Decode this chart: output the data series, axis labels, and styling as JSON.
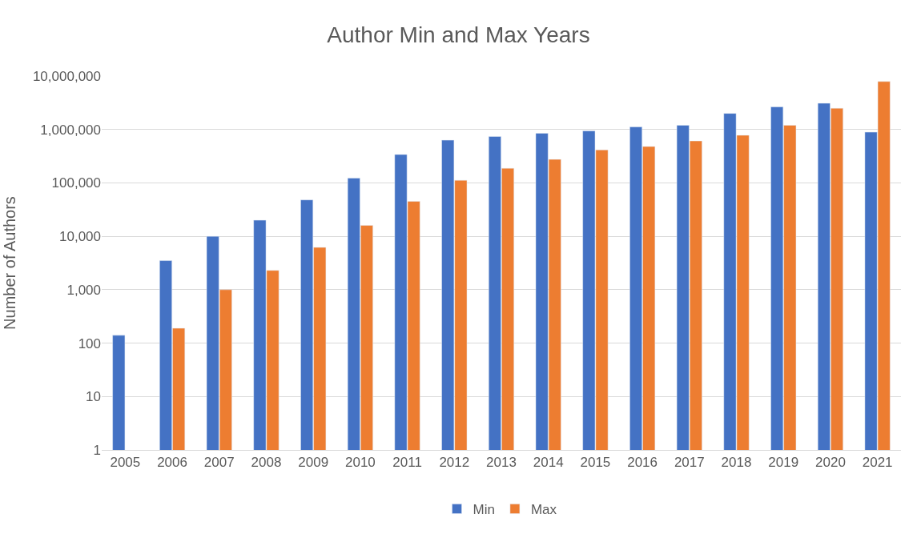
{
  "chart_data": {
    "type": "bar",
    "title": "Author Min and Max Years",
    "ylabel": "Number of Authors",
    "categories": [
      "2005",
      "2006",
      "2007",
      "2008",
      "2009",
      "2010",
      "2011",
      "2012",
      "2013",
      "2014",
      "2015",
      "2016",
      "2017",
      "2018",
      "2019",
      "2020",
      "2021"
    ],
    "series": [
      {
        "name": "Min",
        "color": "#4472c4",
        "values": [
          140,
          3500,
          10000,
          20000,
          48000,
          123000,
          340000,
          630000,
          740000,
          850000,
          940000,
          1120000,
          1200000,
          2000000,
          2650000,
          3100000,
          890000
        ]
      },
      {
        "name": "Max",
        "color": "#ed7d31",
        "values": [
          null,
          190,
          1000,
          2300,
          6200,
          16000,
          45000,
          112000,
          188000,
          275000,
          415000,
          480000,
          610000,
          780000,
          1200000,
          2500000,
          7900000
        ]
      }
    ],
    "log": true,
    "ylim": [
      1,
      10000000
    ],
    "yticks": [
      {
        "value": 1,
        "label": "1"
      },
      {
        "value": 10,
        "label": "10"
      },
      {
        "value": 100,
        "label": "100"
      },
      {
        "value": 1000,
        "label": "1,000"
      },
      {
        "value": 10000,
        "label": "10,000"
      },
      {
        "value": 100000,
        "label": "100,000"
      },
      {
        "value": 1000000,
        "label": "1,000,000"
      },
      {
        "value": 10000000,
        "label": "10,000,000"
      }
    ],
    "grid": "y",
    "legend": "bottom"
  }
}
